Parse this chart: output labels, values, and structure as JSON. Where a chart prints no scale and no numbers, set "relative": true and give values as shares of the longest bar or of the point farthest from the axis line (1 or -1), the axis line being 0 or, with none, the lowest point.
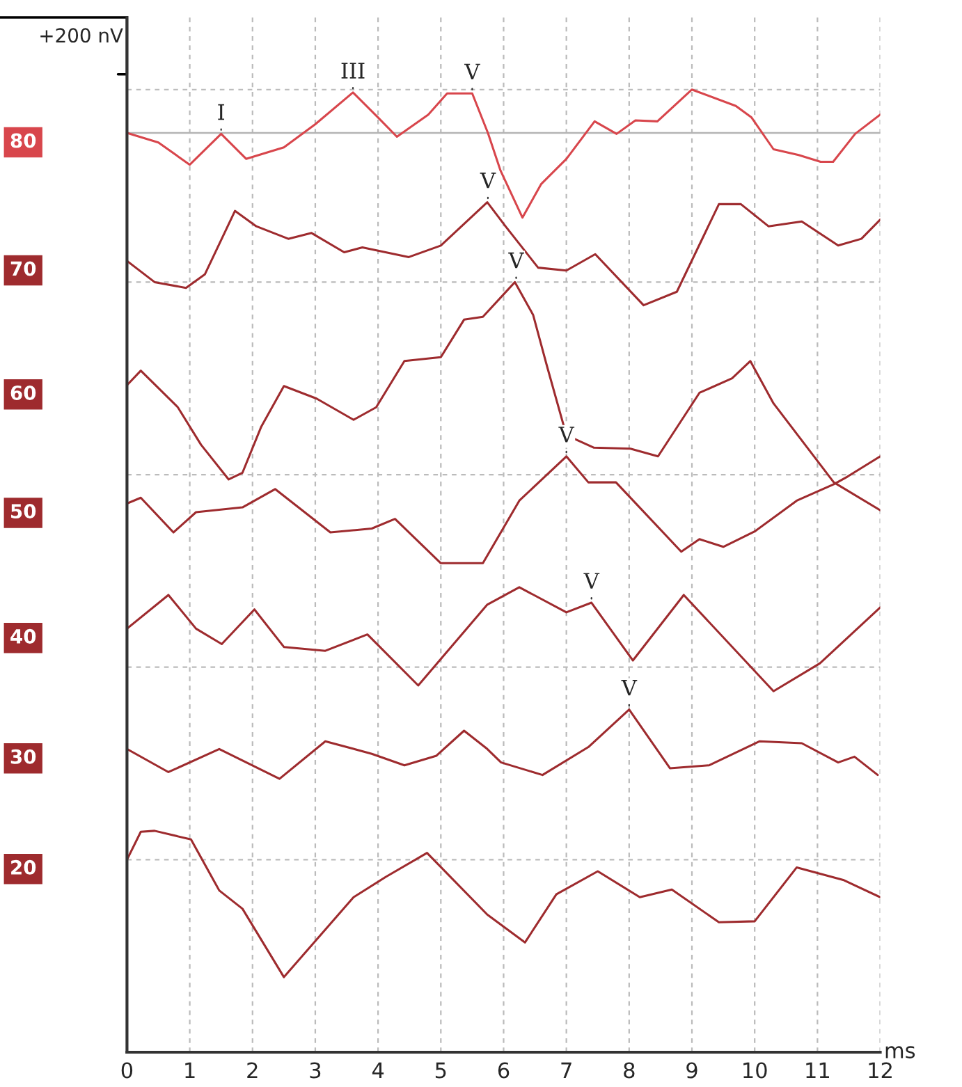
{
  "chart_data": {
    "type": "line",
    "relative": true,
    "xlabel": "ms",
    "xlim": [
      0,
      12
    ],
    "xticks": [
      0,
      1,
      2,
      3,
      4,
      5,
      6,
      7,
      8,
      9,
      10,
      11,
      12
    ],
    "grid": true,
    "line_style": "solid",
    "series": [
      {
        "name": "80",
        "color": "#d8464c",
        "x": [
          0,
          0.5,
          1.0,
          1.5,
          1.9,
          2.5,
          3.0,
          3.6,
          4.0,
          4.3,
          4.8,
          5.1,
          5.5,
          5.75,
          5.95,
          6.3,
          6.6,
          7.0,
          7.45,
          7.8,
          8.1,
          8.45,
          9.0,
          9.7,
          9.95,
          10.3,
          10.7,
          11.05,
          11.25,
          11.6,
          12.0
        ],
        "values": [
          0.955,
          0.945,
          0.922,
          0.954,
          0.928,
          0.94,
          0.964,
          0.997,
          0.971,
          0.951,
          0.974,
          0.996,
          0.996,
          0.955,
          0.916,
          0.867,
          0.902,
          0.928,
          0.967,
          0.954,
          0.968,
          0.967,
          1.0,
          0.983,
          0.971,
          0.938,
          0.932,
          0.925,
          0.925,
          0.954,
          0.974
        ]
      },
      {
        "name": "70",
        "color": "#9e2b2e",
        "x": [
          0,
          0.44,
          0.94,
          1.24,
          1.72,
          2.06,
          2.57,
          2.94,
          3.46,
          3.75,
          4.49,
          5.0,
          5.74,
          6.03,
          6.55,
          7.0,
          7.46,
          8.23,
          8.76,
          9.43,
          9.78,
          10.22,
          10.75,
          11.33,
          11.7,
          12.0
        ],
        "values": [
          0.822,
          0.8,
          0.794,
          0.808,
          0.874,
          0.858,
          0.845,
          0.851,
          0.831,
          0.836,
          0.826,
          0.838,
          0.883,
          0.858,
          0.815,
          0.812,
          0.829,
          0.776,
          0.79,
          0.881,
          0.881,
          0.858,
          0.863,
          0.838,
          0.845,
          0.865
        ]
      },
      {
        "name": "60",
        "color": "#9e2b2e",
        "x": [
          0,
          0.22,
          0.81,
          1.18,
          1.62,
          1.84,
          2.14,
          2.5,
          3.02,
          3.61,
          3.97,
          4.42,
          5.0,
          5.37,
          5.67,
          6.18,
          6.47,
          6.69,
          7.0,
          7.44,
          8.02,
          8.46,
          9.12,
          9.64,
          9.93,
          10.3,
          11.26,
          12.0
        ],
        "values": [
          0.693,
          0.708,
          0.67,
          0.631,
          0.595,
          0.602,
          0.65,
          0.692,
          0.679,
          0.657,
          0.67,
          0.718,
          0.722,
          0.761,
          0.764,
          0.8,
          0.766,
          0.713,
          0.641,
          0.628,
          0.627,
          0.619,
          0.685,
          0.7,
          0.718,
          0.674,
          0.592,
          0.563
        ]
      },
      {
        "name": "50",
        "color": "#9e2b2e",
        "x": [
          0,
          0.22,
          0.74,
          1.1,
          1.84,
          2.36,
          3.24,
          3.9,
          4.27,
          5.0,
          5.67,
          6.25,
          7.0,
          7.35,
          7.79,
          8.83,
          9.12,
          9.5,
          10.0,
          10.67,
          11.26,
          11.48,
          12.0
        ],
        "values": [
          0.57,
          0.576,
          0.54,
          0.561,
          0.566,
          0.585,
          0.54,
          0.544,
          0.554,
          0.508,
          0.508,
          0.573,
          0.619,
          0.592,
          0.592,
          0.52,
          0.533,
          0.525,
          0.541,
          0.573,
          0.59,
          0.598,
          0.619
        ]
      },
      {
        "name": "40",
        "color": "#9e2b2e",
        "x": [
          0,
          0.66,
          1.1,
          1.51,
          2.03,
          2.5,
          3.16,
          3.83,
          4.64,
          5.74,
          6.25,
          7.0,
          7.4,
          8.06,
          8.87,
          10.3,
          11.04,
          12.0
        ],
        "values": [
          0.44,
          0.475,
          0.44,
          0.424,
          0.46,
          0.421,
          0.417,
          0.434,
          0.381,
          0.465,
          0.483,
          0.457,
          0.467,
          0.407,
          0.475,
          0.375,
          0.404,
          0.462
        ]
      },
      {
        "name": "30",
        "color": "#9e2b2e",
        "x": [
          0,
          0.66,
          1.47,
          2.43,
          3.16,
          3.9,
          4.42,
          4.93,
          5.37,
          5.74,
          5.96,
          6.62,
          7.35,
          8.0,
          8.65,
          9.27,
          10.08,
          10.75,
          11.33,
          11.59,
          11.96
        ],
        "values": [
          0.315,
          0.291,
          0.315,
          0.284,
          0.323,
          0.31,
          0.298,
          0.308,
          0.334,
          0.315,
          0.301,
          0.288,
          0.317,
          0.356,
          0.295,
          0.298,
          0.323,
          0.321,
          0.301,
          0.307,
          0.288
        ]
      },
      {
        "name": "20",
        "color": "#9e2b2e",
        "x": [
          0,
          0.22,
          0.44,
          1.02,
          1.47,
          1.84,
          2.5,
          3.61,
          4.12,
          4.78,
          5.74,
          6.34,
          6.84,
          7.5,
          8.17,
          8.68,
          9.43,
          10.0,
          10.67,
          11.41,
          12.0
        ],
        "values": [
          0.2,
          0.229,
          0.23,
          0.221,
          0.168,
          0.149,
          0.078,
          0.161,
          0.182,
          0.207,
          0.143,
          0.114,
          0.164,
          0.188,
          0.161,
          0.169,
          0.135,
          0.136,
          0.192,
          0.179,
          0.161
        ]
      }
    ],
    "ref_lines": [
      {
        "axis": "y",
        "value": 0.955,
        "color": "#b4b4b4"
      }
    ],
    "annotations": [
      "+200 nV",
      {
        "text": "I",
        "x": 1.5,
        "y": 0.954
      },
      {
        "text": "III",
        "x": 3.6,
        "y": 0.997
      },
      {
        "text": "V",
        "x": 5.5,
        "y": 0.996
      },
      {
        "text": "V",
        "x": 5.75,
        "y": 0.883
      },
      {
        "text": "V",
        "x": 6.2,
        "y": 0.8
      },
      {
        "text": "V",
        "x": 7.0,
        "y": 0.619
      },
      {
        "text": "V",
        "x": 7.4,
        "y": 0.467
      },
      {
        "text": "V",
        "x": 8.0,
        "y": 0.356
      }
    ]
  }
}
